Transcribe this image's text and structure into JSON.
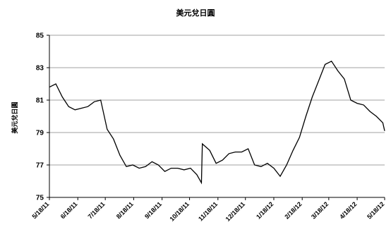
{
  "chart_data": {
    "type": "line",
    "title": "美元兌日圓",
    "ylabel": "美元兌日圓",
    "xlabel": "",
    "ylim": [
      75,
      85
    ],
    "yticks": [
      75,
      77,
      79,
      81,
      83,
      85
    ],
    "grid": true,
    "x_tick_labels": [
      "5/18/11",
      "6/18/11",
      "7/18/11",
      "8/18/11",
      "9/18/11",
      "10/18/11",
      "11/18/11",
      "12/18/11",
      "1/18/12",
      "2/18/12",
      "3/18/12",
      "4/18/12",
      "5/18/12"
    ],
    "series": [
      {
        "x": [
          "5/18/11",
          "5/25/11",
          "6/1/11",
          "6/8/11",
          "6/15/11",
          "6/22/11",
          "6/29/11",
          "7/6/11",
          "7/13/11",
          "7/20/11",
          "7/27/11",
          "8/3/11",
          "8/10/11",
          "8/17/11",
          "8/24/11",
          "8/31/11",
          "9/7/11",
          "9/14/11",
          "9/21/11",
          "9/28/11",
          "10/5/11",
          "10/12/11",
          "10/19/11",
          "10/26/11",
          "10/31/11",
          "11/1/11",
          "11/9/11",
          "11/16/11",
          "11/23/11",
          "11/30/11",
          "12/7/11",
          "12/14/11",
          "12/21/11",
          "12/28/11",
          "1/4/12",
          "1/11/12",
          "1/18/12",
          "1/25/12",
          "2/1/12",
          "2/8/12",
          "2/15/12",
          "2/22/12",
          "2/29/12",
          "3/7/12",
          "3/14/12",
          "3/21/12",
          "3/28/12",
          "4/4/12",
          "4/11/12",
          "4/18/12",
          "4/25/12",
          "5/2/12",
          "5/9/12",
          "5/16/12",
          "5/18/12"
        ],
        "values": [
          81.8,
          82.0,
          81.2,
          80.6,
          80.4,
          80.5,
          80.6,
          80.9,
          81.0,
          79.2,
          78.6,
          77.6,
          76.9,
          77.0,
          76.8,
          76.9,
          77.2,
          77.0,
          76.6,
          76.8,
          76.8,
          76.7,
          76.8,
          76.4,
          75.9,
          78.3,
          77.9,
          77.1,
          77.3,
          77.7,
          77.8,
          77.8,
          78.0,
          77.0,
          76.9,
          77.1,
          76.8,
          76.3,
          77.0,
          77.9,
          78.7,
          80.0,
          81.2,
          82.2,
          83.2,
          83.4,
          82.8,
          82.3,
          81.0,
          80.8,
          80.7,
          80.3,
          80.0,
          79.6,
          79.1
        ]
      }
    ]
  }
}
